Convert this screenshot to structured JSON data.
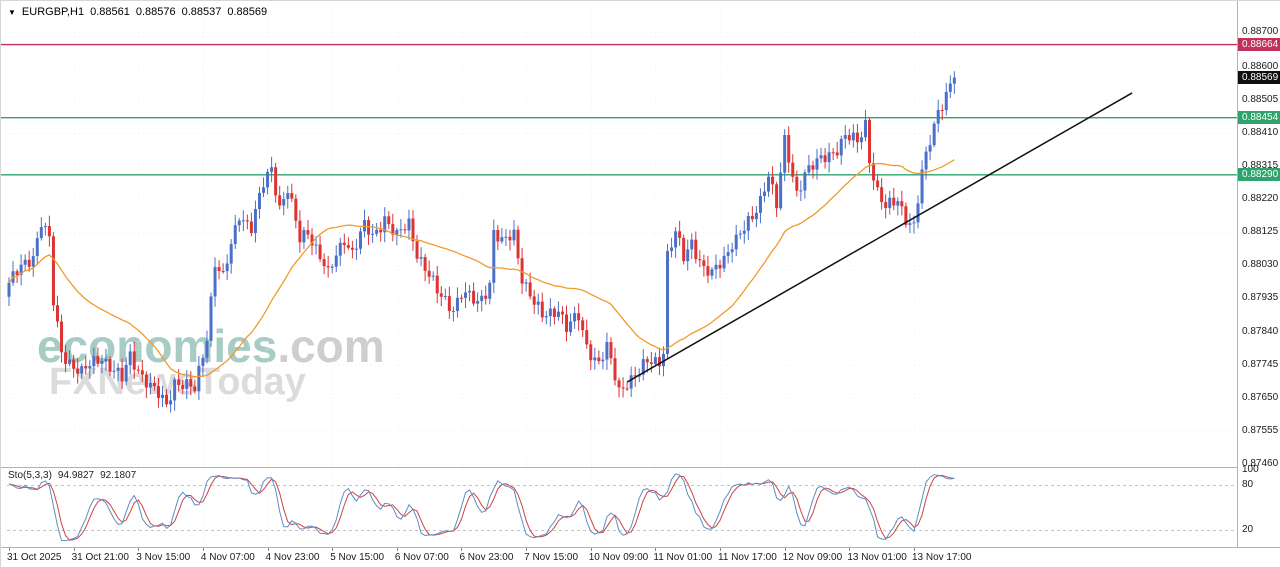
{
  "header": {
    "symbol": "EURGBP,H1",
    "open": "0.88561",
    "high": "0.88576",
    "low": "0.88537",
    "close": "0.88569"
  },
  "icons": {
    "collapse_arrow": "▼"
  },
  "watermark": {
    "brand": "economies",
    "brand_suffix": ".com",
    "subtitle": "FXNewsToday"
  },
  "price_axis": {
    "range": {
      "top": 0.88766,
      "bottom": 0.87454
    },
    "ticks": [
      "0.88700",
      "0.88600",
      "0.88505",
      "0.88410",
      "0.88315",
      "0.88220",
      "0.88125",
      "0.88030",
      "0.87935",
      "0.87840",
      "0.87745",
      "0.87650",
      "0.87555",
      "0.87460"
    ],
    "badges": [
      {
        "value": "0.88664",
        "price": 0.88664,
        "color": "#c2315c",
        "name": "resistance-price-badge"
      },
      {
        "value": "0.88569",
        "price": 0.88569,
        "color": "#101010",
        "name": "current-price-badge"
      },
      {
        "value": "0.88454",
        "price": 0.88454,
        "color": "#2ea46c",
        "name": "support1-price-badge"
      },
      {
        "value": "0.88290",
        "price": 0.8829,
        "color": "#2ea46c",
        "name": "support2-price-badge"
      }
    ]
  },
  "time_axis": {
    "ticks": [
      {
        "label": "31 Oct 2025",
        "i": 0
      },
      {
        "label": "31 Oct 21:00",
        "i": 16
      },
      {
        "label": "3 Nov 15:00",
        "i": 32
      },
      {
        "label": "4 Nov 07:00",
        "i": 48
      },
      {
        "label": "4 Nov 23:00",
        "i": 64
      },
      {
        "label": "5 Nov 15:00",
        "i": 80
      },
      {
        "label": "6 Nov 07:00",
        "i": 96
      },
      {
        "label": "6 Nov 23:00",
        "i": 112
      },
      {
        "label": "7 Nov 15:00",
        "i": 128
      },
      {
        "label": "10 Nov 09:00",
        "i": 144
      },
      {
        "label": "11 Nov 01:00",
        "i": 160
      },
      {
        "label": "11 Nov 17:00",
        "i": 176
      },
      {
        "label": "12 Nov 09:00",
        "i": 192
      },
      {
        "label": "13 Nov 01:00",
        "i": 208
      },
      {
        "label": "13 Nov 17:00",
        "i": 224
      }
    ]
  },
  "stochastic": {
    "label": "Sto(5,3,3)",
    "value_main": "94.9827",
    "value_signal": "92.1807",
    "levels": [
      {
        "label": "100",
        "v": 100
      },
      {
        "label": "80",
        "v": 80
      },
      {
        "label": "20",
        "v": 20
      }
    ],
    "dashed_levels": [
      80,
      20
    ],
    "main_color": "#5b8ec4",
    "signal_color": "#cc4444"
  },
  "chart_data": {
    "type": "candlestick",
    "symbol": "EURGBP",
    "timeframe": "H1",
    "bar_count": 235,
    "bull_color": "#4a70c8",
    "bear_color": "#dd3333",
    "wiggle": 0.00026,
    "wick": 0.0003,
    "price_path": [
      [
        0,
        0.8798
      ],
      [
        6,
        0.8806
      ],
      [
        8,
        0.8816
      ],
      [
        10,
        0.881
      ],
      [
        11,
        0.8792
      ],
      [
        13,
        0.8778
      ],
      [
        18,
        0.8772
      ],
      [
        23,
        0.8777
      ],
      [
        28,
        0.877
      ],
      [
        30,
        0.8777
      ],
      [
        35,
        0.8768
      ],
      [
        39,
        0.8763
      ],
      [
        41,
        0.877
      ],
      [
        46,
        0.8767
      ],
      [
        49,
        0.8783
      ],
      [
        51,
        0.8804
      ],
      [
        53,
        0.8799
      ],
      [
        57,
        0.8818
      ],
      [
        60,
        0.8814
      ],
      [
        63,
        0.8826
      ],
      [
        65,
        0.8831
      ],
      [
        67,
        0.882
      ],
      [
        69,
        0.8825
      ],
      [
        72,
        0.881
      ],
      [
        74,
        0.8813
      ],
      [
        77,
        0.8806
      ],
      [
        79,
        0.88
      ],
      [
        83,
        0.8811
      ],
      [
        85,
        0.8807
      ],
      [
        88,
        0.8814
      ],
      [
        90,
        0.8811
      ],
      [
        93,
        0.8817
      ],
      [
        96,
        0.8811
      ],
      [
        99,
        0.8815
      ],
      [
        101,
        0.8807
      ],
      [
        104,
        0.88
      ],
      [
        106,
        0.8795
      ],
      [
        110,
        0.8791
      ],
      [
        112,
        0.8795
      ],
      [
        116,
        0.8792
      ],
      [
        119,
        0.8798
      ],
      [
        120,
        0.8813
      ],
      [
        122,
        0.8809
      ],
      [
        125,
        0.8812
      ],
      [
        127,
        0.88
      ],
      [
        130,
        0.8792
      ],
      [
        132,
        0.8788
      ],
      [
        136,
        0.8791
      ],
      [
        138,
        0.8785
      ],
      [
        141,
        0.8788
      ],
      [
        143,
        0.878
      ],
      [
        146,
        0.8775
      ],
      [
        148,
        0.8779
      ],
      [
        151,
        0.8767
      ],
      [
        153,
        0.877
      ],
      [
        156,
        0.8772
      ],
      [
        158,
        0.8775
      ],
      [
        161,
        0.8776
      ],
      [
        162,
        0.8779
      ],
      [
        163,
        0.8806
      ],
      [
        165,
        0.8812
      ],
      [
        167,
        0.8805
      ],
      [
        169,
        0.881
      ],
      [
        172,
        0.8802
      ],
      [
        174,
        0.88
      ],
      [
        177,
        0.8805
      ],
      [
        179,
        0.881
      ],
      [
        181,
        0.8812
      ],
      [
        184,
        0.8816
      ],
      [
        186,
        0.8822
      ],
      [
        188,
        0.883
      ],
      [
        190,
        0.882
      ],
      [
        192,
        0.8838
      ],
      [
        195,
        0.8824
      ],
      [
        197,
        0.883
      ],
      [
        200,
        0.8832
      ],
      [
        202,
        0.8834
      ],
      [
        205,
        0.8837
      ],
      [
        207,
        0.884
      ],
      [
        210,
        0.8838
      ],
      [
        212,
        0.8844
      ],
      [
        213,
        0.8834
      ],
      [
        215,
        0.8824
      ],
      [
        217,
        0.8819
      ],
      [
        220,
        0.8822
      ],
      [
        222,
        0.8817
      ],
      [
        224,
        0.8814
      ],
      [
        226,
        0.8829
      ],
      [
        228,
        0.8839
      ],
      [
        230,
        0.8848
      ],
      [
        232,
        0.8852
      ],
      [
        234,
        0.88569
      ]
    ],
    "moving_average": {
      "period": 30,
      "color": "#ef9b2d"
    },
    "horizontal_lines": [
      {
        "name": "resistance-line",
        "price": 0.88664,
        "color": "#c2315c"
      },
      {
        "name": "support-line-1",
        "price": 0.88454,
        "color": "#2ea46c"
      },
      {
        "name": "support-line-2",
        "price": 0.8829,
        "color": "#2ea46c"
      }
    ],
    "trendline": {
      "i1": 153,
      "p1": 0.87695,
      "i2": 278,
      "p2": 0.88525,
      "color": "#111111"
    },
    "oscillator": {
      "type": "stochastic",
      "k": 5,
      "slowing": 3,
      "d": 3
    }
  }
}
